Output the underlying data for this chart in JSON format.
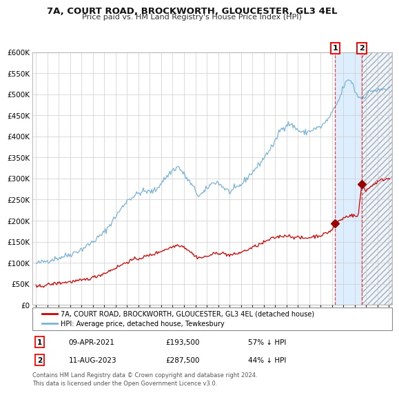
{
  "title": "7A, COURT ROAD, BROCKWORTH, GLOUCESTER, GL3 4EL",
  "subtitle": "Price paid vs. HM Land Registry's House Price Index (HPI)",
  "hpi_label": "HPI: Average price, detached house, Tewkesbury",
  "property_label": "7A, COURT ROAD, BROCKWORTH, GLOUCESTER, GL3 4EL (detached house)",
  "hpi_color": "#7ab3d4",
  "property_color": "#cc0000",
  "marker_color": "#990000",
  "sale1_date": "09-APR-2021",
  "sale1_price": 193500,
  "sale1_note": "57% ↓ HPI",
  "sale2_date": "11-AUG-2023",
  "sale2_price": 287500,
  "sale2_note": "44% ↓ HPI",
  "ylim": [
    0,
    600000
  ],
  "ytick_step": 50000,
  "xstart_year": 1995,
  "xend_year": 2026,
  "footnote": "Contains HM Land Registry data © Crown copyright and database right 2024.\nThis data is licensed under the Open Government Licence v3.0.",
  "background_color": "#ffffff",
  "grid_color": "#cccccc",
  "shade_color": "#ddeeff",
  "sale1_x": 2021.27,
  "sale2_x": 2023.62
}
